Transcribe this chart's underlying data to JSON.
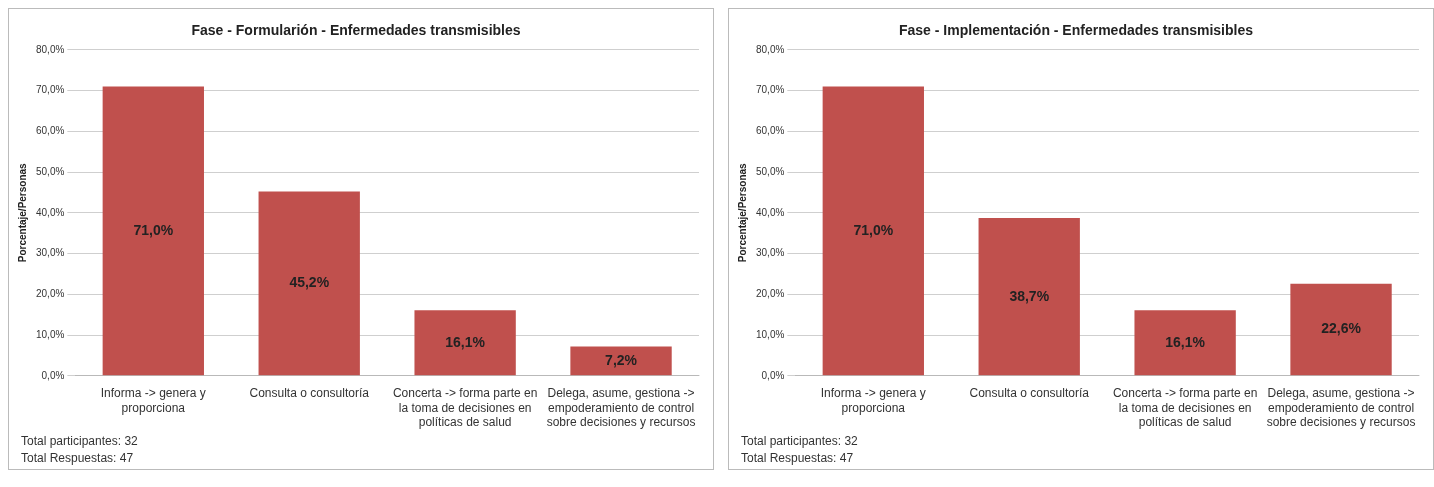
{
  "chart_data": [
    {
      "type": "bar",
      "title": "Fase - Formularión - Enfermedades transmisibles",
      "ylabel": "Porcentaje/Personas",
      "categories": [
        "Informa -> genera y proporciona",
        "Consulta o consultoría",
        "Concerta -> forma parte en la toma de decisiones en políticas de salud",
        "Delega, asume, gestiona -> empoderamiento de control sobre decisiones y recursos"
      ],
      "values": [
        71.0,
        45.2,
        16.1,
        7.2
      ],
      "value_labels": [
        "71,0%",
        "45,2%",
        "16,1%",
        "7,2%"
      ],
      "color": "#c0504d",
      "ylim": [
        0,
        80
      ],
      "yticks": [
        {
          "value": 0,
          "label": "0,0%"
        },
        {
          "value": 10,
          "label": "10,0%"
        },
        {
          "value": 20,
          "label": "20,0%"
        },
        {
          "value": 30,
          "label": "30,0%"
        },
        {
          "value": 40,
          "label": "40,0%"
        },
        {
          "value": 50,
          "label": "50,0%"
        },
        {
          "value": 60,
          "label": "60,0%"
        },
        {
          "value": 70,
          "label": "70,0%"
        },
        {
          "value": 80,
          "label": "80,0%"
        }
      ],
      "grid": "y",
      "annotations": [
        "Total participantes: 32",
        "Total Respuestas: 47"
      ]
    },
    {
      "type": "bar",
      "title": "Fase - Implementación - Enfermedades transmisibles",
      "ylabel": "Porcentaje/Personas",
      "categories": [
        "Informa -> genera y proporciona",
        "Consulta o consultoría",
        "Concerta -> forma parte en la toma de decisiones en políticas de salud",
        "Delega, asume, gestiona -> empoderamiento de control sobre decisiones y recursos"
      ],
      "values": [
        71.0,
        38.7,
        16.1,
        22.6
      ],
      "value_labels": [
        "71,0%",
        "38,7%",
        "16,1%",
        "22,6%"
      ],
      "color": "#c0504d",
      "ylim": [
        0,
        80
      ],
      "yticks": [
        {
          "value": 0,
          "label": "0,0%"
        },
        {
          "value": 10,
          "label": "10,0%"
        },
        {
          "value": 20,
          "label": "20,0%"
        },
        {
          "value": 30,
          "label": "30,0%"
        },
        {
          "value": 40,
          "label": "40,0%"
        },
        {
          "value": 50,
          "label": "50,0%"
        },
        {
          "value": 60,
          "label": "60,0%"
        },
        {
          "value": 70,
          "label": "70,0%"
        },
        {
          "value": 80,
          "label": "80,0%"
        }
      ],
      "grid": "y",
      "annotations": [
        "Total participantes: 32",
        "Total Respuestas: 47"
      ]
    }
  ]
}
